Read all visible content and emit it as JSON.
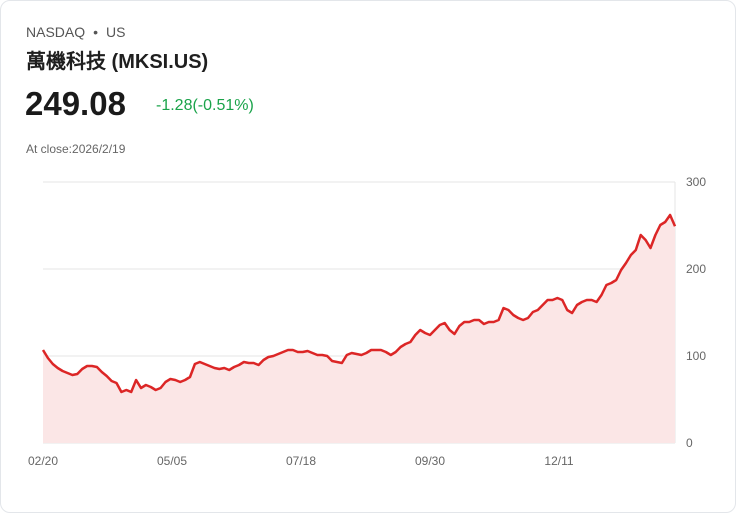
{
  "header": {
    "exchange": "NASDAQ",
    "separator": "•",
    "market": "US",
    "name": "萬機科技 (MKSI.US)",
    "price": "249.08",
    "change": "-1.28(-0.51%)",
    "close_label": "At close:2026/2/19"
  },
  "colors": {
    "line": "#dc2626",
    "fill": "#fbe6e6",
    "change": "#1aa34a",
    "grid": "#e6e6e6"
  },
  "chart_data": {
    "type": "area",
    "title": "",
    "xlabel": "",
    "ylabel": "",
    "ylim": [
      0,
      300
    ],
    "yticks": [
      0,
      100,
      200,
      300
    ],
    "xtick_labels": [
      "02/20",
      "05/05",
      "07/18",
      "09/30",
      "12/11"
    ],
    "y_axis_position": "right",
    "grid": true,
    "series": [
      {
        "name": "MKSI.US",
        "values": [
          106.9,
          97.7,
          90.8,
          86.2,
          82.8,
          80.5,
          78.2,
          79.3,
          85.1,
          88.5,
          88.5,
          87.4,
          81.6,
          77.0,
          71.3,
          69.0,
          58.6,
          60.9,
          58.6,
          72.4,
          63.2,
          66.7,
          64.4,
          60.9,
          63.2,
          70.1,
          73.6,
          72.4,
          70.1,
          72.4,
          75.9,
          90.8,
          93.1,
          90.8,
          88.5,
          86.2,
          85.1,
          86.2,
          83.9,
          87.4,
          89.7,
          93.1,
          92.0,
          92.0,
          89.7,
          95.4,
          98.9,
          100,
          102.3,
          104.6,
          106.9,
          106.9,
          104.6,
          104.6,
          105.7,
          103.4,
          101.1,
          101.1,
          100,
          94.3,
          93.1,
          92.0,
          101.1,
          103.4,
          102.3,
          101.1,
          103.4,
          106.9,
          106.9,
          106.9,
          104.6,
          101.1,
          104.6,
          110.3,
          113.8,
          116.1,
          124.1,
          129.9,
          126.4,
          124.1,
          129.9,
          135.6,
          137.9,
          129.9,
          125.3,
          134.5,
          139.1,
          139.1,
          141.4,
          141.4,
          136.8,
          139.1,
          139.1,
          141.4,
          155.2,
          152.9,
          147.1,
          143.7,
          141.4,
          143.7,
          150.6,
          152.9,
          158.6,
          164.4,
          164.4,
          166.7,
          164.4,
          152.9,
          149.4,
          158.6,
          162.1,
          164.4,
          164.4,
          162.1,
          170.1,
          181.6,
          183.9,
          187.4,
          198.9,
          206.9,
          216.1,
          221.8,
          239.1,
          233.3,
          224.1,
          239.1,
          250.6,
          254.0,
          262.1,
          249.08
        ]
      }
    ]
  }
}
